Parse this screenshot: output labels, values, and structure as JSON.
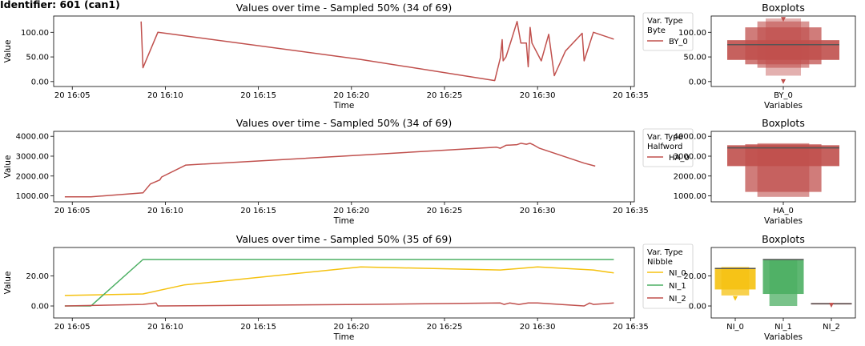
{
  "identifier": "Identifier: 601 (can1)",
  "colors": {
    "BY_0": "#c0504d",
    "HA_0": "#c0504d",
    "NI_0": "#f5c211",
    "NI_1": "#4caf63",
    "NI_2": "#c0504d"
  },
  "chart_data": [
    {
      "type": "line",
      "title": "Values over time - Sampled 50% (34 of 69)",
      "xlabel": "Time",
      "ylabel": "Value",
      "xticks": [
        "20 16:05",
        "20 16:10",
        "20 16:15",
        "20 16:20",
        "20 16:25",
        "20 16:30",
        "20 16:35"
      ],
      "yticks": [
        "0.00",
        "50.00",
        "100.00"
      ],
      "xlim": [
        4.0,
        35.2
      ],
      "ylim": [
        -10,
        133
      ],
      "legend": {
        "title": [
          "Var. Type",
          "Byte"
        ],
        "entries": [
          "BY_0"
        ],
        "placement": "outside-right"
      },
      "series": [
        {
          "name": "BY_0",
          "x": [
            8.7,
            8.8,
            9.6,
            20.5,
            27.7,
            28.0,
            28.1,
            28.15,
            28.3,
            28.6,
            28.9,
            29.1,
            29.4,
            29.5,
            29.6,
            29.7,
            30.2,
            30.6,
            30.9,
            31.5,
            32.4,
            32.5,
            33.0,
            34.1
          ],
          "y": [
            122,
            28,
            100,
            45,
            2,
            48,
            85,
            42,
            50,
            85,
            122,
            78,
            78,
            30,
            110,
            78,
            42,
            96,
            12,
            62,
            98,
            42,
            100,
            86
          ]
        }
      ]
    },
    {
      "type": "boxplot",
      "title": "Boxplots",
      "xlabel": "Variables",
      "categories": [
        "BY_0"
      ],
      "yticks": [
        "0.00",
        "50.00",
        "100.00"
      ],
      "ylim": [
        -10,
        133
      ],
      "boxes": [
        {
          "name": "BY_0",
          "median": 75,
          "q1": 44,
          "q3": 84,
          "levels": [
            [
              44,
              84
            ],
            [
              35,
              110
            ],
            [
              28,
              122
            ],
            [
              12,
              128
            ]
          ],
          "outliers": [
            0,
            126
          ]
        }
      ]
    },
    {
      "type": "line",
      "title": "Values over time - Sampled 50% (34 of 69)",
      "xlabel": "Time",
      "ylabel": "Value",
      "xticks": [
        "20 16:05",
        "20 16:10",
        "20 16:15",
        "20 16:20",
        "20 16:25",
        "20 16:30",
        "20 16:35"
      ],
      "yticks": [
        "1000.00",
        "2000.00",
        "3000.00",
        "4000.00"
      ],
      "xlim": [
        4.0,
        35.2
      ],
      "ylim": [
        700,
        4250
      ],
      "legend": {
        "title": [
          "Var. Type",
          "Halfword"
        ],
        "entries": [
          "HA_0"
        ],
        "placement": "outside-right"
      },
      "series": [
        {
          "name": "HA_0",
          "x": [
            4.6,
            6.0,
            8.8,
            9.2,
            9.7,
            9.8,
            11.1,
            19.5,
            27.8,
            28.0,
            28.3,
            28.9,
            29.1,
            29.4,
            29.6,
            29.8,
            30.1,
            32.5,
            33.1
          ],
          "y": [
            950,
            950,
            1150,
            1600,
            1800,
            1950,
            2550,
            3000,
            3450,
            3400,
            3550,
            3580,
            3650,
            3600,
            3650,
            3560,
            3400,
            2650,
            2500
          ]
        }
      ]
    },
    {
      "type": "boxplot",
      "title": "Boxplots",
      "xlabel": "Variables",
      "categories": [
        "HA_0"
      ],
      "yticks": [
        "1000.00",
        "2000.00",
        "3000.00",
        "4000.00"
      ],
      "ylim": [
        700,
        4250
      ],
      "boxes": [
        {
          "name": "HA_0",
          "median": 3420,
          "q1": 2500,
          "q3": 3550,
          "levels": [
            [
              2500,
              3550
            ],
            [
              1200,
              3600
            ],
            [
              950,
              3650
            ]
          ],
          "outliers": []
        }
      ]
    },
    {
      "type": "line",
      "title": "Values over time - Sampled 50% (35 of 69)",
      "xlabel": "Time",
      "ylabel": "Value",
      "xticks": [
        "20 16:05",
        "20 16:10",
        "20 16:15",
        "20 16:20",
        "20 16:25",
        "20 16:30",
        "20 16:35"
      ],
      "yticks": [
        "0.00",
        "20.00"
      ],
      "xlim": [
        4.0,
        35.2
      ],
      "ylim": [
        -8,
        39
      ],
      "legend": {
        "title": [
          "Var. Type",
          "Nibble"
        ],
        "entries": [
          "NI_0",
          "NI_1",
          "NI_2"
        ],
        "placement": "outside-right"
      },
      "series": [
        {
          "name": "NI_0",
          "x": [
            4.6,
            8.8,
            11.0,
            20.5,
            28.0,
            29.0,
            30.0,
            33.0,
            34.1
          ],
          "y": [
            7,
            8,
            14,
            26,
            24,
            25,
            26,
            24,
            22
          ]
        },
        {
          "name": "NI_1",
          "x": [
            4.6,
            6.0,
            8.8,
            34.1
          ],
          "y": [
            0,
            0,
            31,
            31
          ]
        },
        {
          "name": "NI_2",
          "x": [
            4.6,
            8.8,
            9.5,
            9.6,
            20.5,
            28.0,
            28.2,
            28.5,
            29.0,
            29.5,
            30.0,
            32.5,
            32.8,
            33.0,
            34.1
          ],
          "y": [
            0,
            1,
            2,
            0,
            1,
            2,
            1,
            2,
            1,
            2,
            2,
            0,
            2,
            1,
            2
          ]
        }
      ]
    },
    {
      "type": "boxplot",
      "title": "Boxplots",
      "xlabel": "Variables",
      "categories": [
        "NI_0",
        "NI_1",
        "NI_2"
      ],
      "yticks": [
        "0.00",
        "20.00"
      ],
      "ylim": [
        -8,
        39
      ],
      "boxes": [
        {
          "name": "NI_0",
          "median": 25,
          "q1": 11,
          "q3": 25.5,
          "levels": [
            [
              11,
              25.5
            ],
            [
              7,
              26
            ]
          ],
          "outliers": [
            5
          ]
        },
        {
          "name": "NI_1",
          "median": 31,
          "q1": 8,
          "q3": 31,
          "levels": [
            [
              8,
              31
            ],
            [
              0,
              31
            ]
          ],
          "outliers": []
        },
        {
          "name": "NI_2",
          "median": 1.5,
          "q1": 1,
          "q3": 2,
          "levels": [
            [
              1,
              2
            ]
          ],
          "outliers": [
            0.5
          ]
        }
      ]
    }
  ]
}
